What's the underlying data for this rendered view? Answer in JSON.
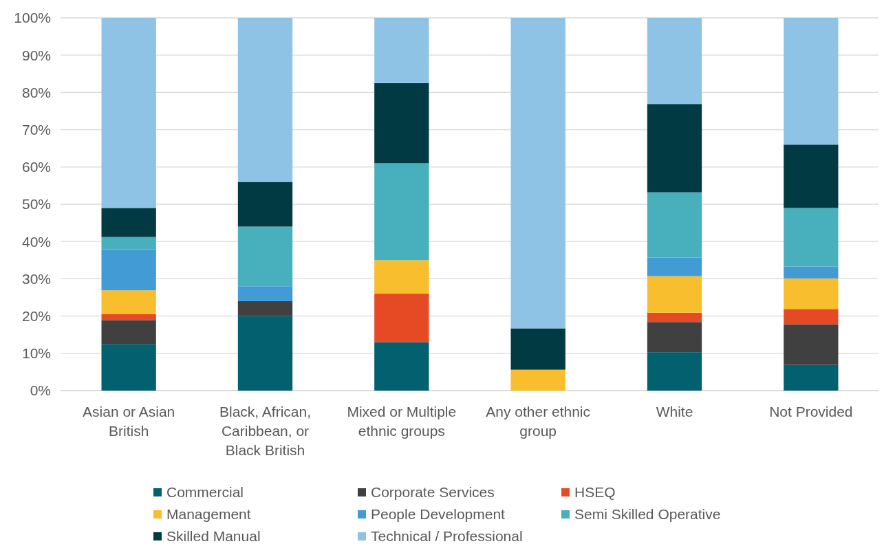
{
  "chart_data": {
    "type": "bar",
    "stacked": true,
    "categories": [
      "Asian or Asian British",
      "Black, African, Caribbean, or Black British",
      "Mixed or Multiple ethnic groups",
      "Any other ethnic group",
      "White",
      "Not Provided"
    ],
    "series": [
      {
        "name": "Commercial",
        "color": "#02606f",
        "values": [
          12.5,
          20,
          13,
          0,
          10.3,
          6.9
        ]
      },
      {
        "name": "Corporate Services",
        "color": "#404040",
        "values": [
          6.4,
          4,
          0,
          0,
          8.1,
          10.9
        ]
      },
      {
        "name": "HSEQ",
        "color": "#e64a25",
        "values": [
          1.6,
          0,
          13,
          0,
          2.5,
          4.1
        ]
      },
      {
        "name": "Management",
        "color": "#f9be2e",
        "values": [
          6.4,
          0,
          9,
          5.6,
          9.8,
          8.2
        ]
      },
      {
        "name": "People Development",
        "color": "#429bd5",
        "values": [
          11.0,
          4,
          0,
          0,
          5.0,
          3.2
        ]
      },
      {
        "name": "Semi Skilled Operative",
        "color": "#48afbc",
        "values": [
          3.3,
          16,
          26,
          0,
          17.5,
          15.7
        ]
      },
      {
        "name": "Skilled Manual",
        "color": "#023a44",
        "values": [
          7.8,
          12,
          21.5,
          11.1,
          23.7,
          17.0
        ]
      },
      {
        "name": "Technical / Professional",
        "color": "#8ec3e6",
        "values": [
          51.0,
          44,
          17.5,
          83.3,
          23.1,
          34.0
        ]
      }
    ],
    "ylim": [
      0,
      100
    ],
    "yticks": [
      {
        "value": 0,
        "label": "0%"
      },
      {
        "value": 10,
        "label": "10%"
      },
      {
        "value": 20,
        "label": "20%"
      },
      {
        "value": 30,
        "label": "30%"
      },
      {
        "value": 40,
        "label": "40%"
      },
      {
        "value": 50,
        "label": "50%"
      },
      {
        "value": 60,
        "label": "60%"
      },
      {
        "value": 70,
        "label": "70%"
      },
      {
        "value": 80,
        "label": "80%"
      },
      {
        "value": 90,
        "label": "90%"
      },
      {
        "value": 100,
        "label": "100%"
      }
    ],
    "grid": "y",
    "legend": "bottom"
  }
}
